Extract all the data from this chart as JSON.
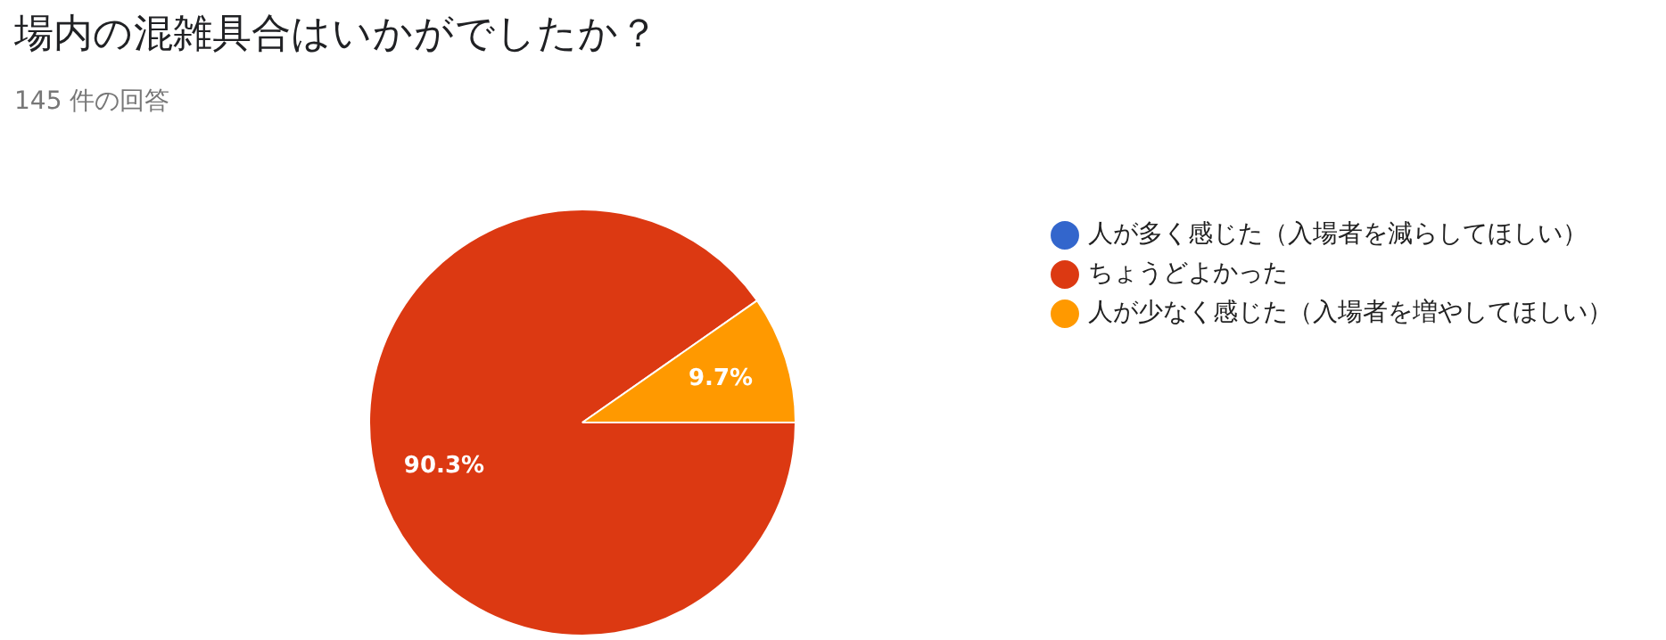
{
  "chart_data": {
    "type": "pie",
    "title": "場内の混雑具合はいかがでしたか？",
    "subtitle": "145 件の回答",
    "categories": [
      "人が多く感じた（入場者を減らしてほしい）",
      "ちょうどよかった",
      "人が少なく感じた（入場者を増やしてほしい）"
    ],
    "values": [
      0,
      90.3,
      9.7
    ],
    "colors": [
      "#3366cc",
      "#dc3912",
      "#ff9900"
    ],
    "value_labels": [
      null,
      "90.3%",
      "9.7%"
    ],
    "legend": "right"
  }
}
